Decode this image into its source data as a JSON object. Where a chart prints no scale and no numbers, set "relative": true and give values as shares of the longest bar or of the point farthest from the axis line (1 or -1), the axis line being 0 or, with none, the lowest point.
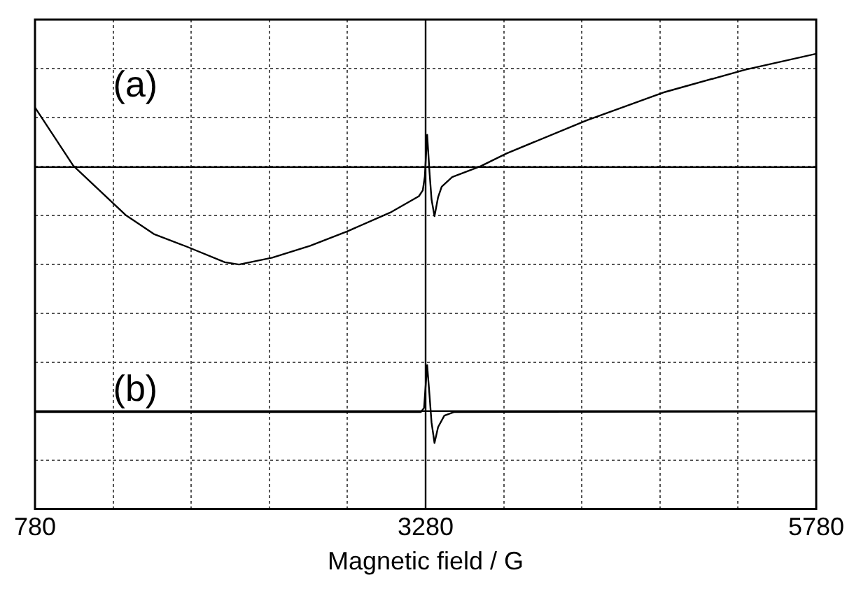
{
  "chart_data": {
    "type": "line",
    "relative": true,
    "xlabel": "Magnetic field / G",
    "xlim": [
      780,
      5780
    ],
    "xticks": [
      780,
      {
        "value": 1280,
        "label": null
      },
      {
        "value": 1780,
        "label": null
      },
      {
        "value": 2280,
        "label": null
      },
      {
        "value": 2780,
        "label": null
      },
      3280,
      {
        "value": 3780,
        "label": null
      },
      {
        "value": 4280,
        "label": null
      },
      {
        "value": 4780,
        "label": null
      },
      {
        "value": 5280,
        "label": null
      },
      5780
    ],
    "grid": true,
    "legend": false,
    "marker": "none",
    "line_style": "solid",
    "ref_lines": [
      {
        "axis": "y",
        "value": 0.751,
        "color": "#000000"
      },
      {
        "axis": "y",
        "value": 0.215,
        "color": "#000000"
      },
      {
        "axis": "x",
        "value": 3280,
        "color": "#000000"
      }
    ],
    "series": [
      {
        "name": "(a)",
        "color": "#000000",
        "x": [
          780,
          1025,
          1359,
          1541,
          1753,
          1995,
          2086,
          2298,
          2541,
          2780,
          3053,
          3237,
          3262,
          3275,
          3290,
          3305,
          3318,
          3337,
          3360,
          3383,
          3450,
          3632,
          3798,
          4313,
          4813,
          5326,
          5780
        ],
        "values": [
          0.882,
          0.754,
          0.646,
          0.604,
          0.576,
          0.542,
          0.537,
          0.552,
          0.578,
          0.61,
          0.651,
          0.687,
          0.7,
          0.73,
          0.822,
          0.74,
          0.68,
          0.643,
          0.685,
          0.708,
          0.729,
          0.753,
          0.781,
          0.854,
          0.916,
          0.965,
          1.0
        ]
      },
      {
        "name": "(b)",
        "color": "#000000",
        "x": [
          780,
          3250,
          3270,
          3290,
          3305,
          3318,
          3337,
          3360,
          3400,
          3464,
          5780
        ],
        "values": [
          0.213,
          0.213,
          0.222,
          0.316,
          0.25,
          0.19,
          0.145,
          0.18,
          0.205,
          0.213,
          0.214
        ]
      }
    ]
  }
}
